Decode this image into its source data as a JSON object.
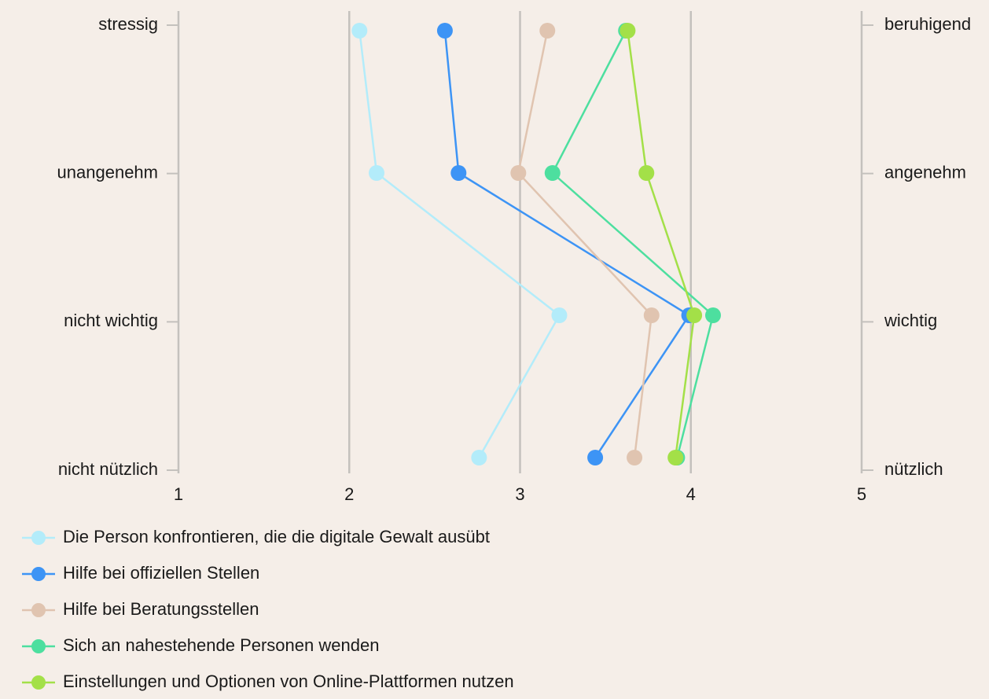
{
  "chart_data": {
    "type": "line",
    "categories": [
      "stressig",
      "unangenehm",
      "nicht wichtig",
      "nicht nützlich"
    ],
    "categories_right": [
      "beruhigend",
      "angenehm",
      "wichtig",
      "nützlich"
    ],
    "xlim": [
      1,
      5
    ],
    "xticks": [
      1,
      2,
      3,
      4,
      5
    ],
    "grid": true,
    "legend": "bottom",
    "series": [
      {
        "name": "Die Person konfrontieren, die die digitale Gewalt ausübt",
        "color": "#b3ecfa",
        "values": [
          2.06,
          2.16,
          3.23,
          2.76
        ]
      },
      {
        "name": "Hilfe bei offiziellen Stellen",
        "color": "#3d94f5",
        "values": [
          2.56,
          2.64,
          3.99,
          3.44
        ]
      },
      {
        "name": "Hilfe bei Beratungsstellen",
        "color": "#e0c4b0",
        "values": [
          3.16,
          2.99,
          3.77,
          3.67
        ]
      },
      {
        "name": "Sich an nahestehende Personen wenden",
        "color": "#4ddf9f",
        "values": [
          3.62,
          3.19,
          4.13,
          3.92
        ]
      },
      {
        "name": "Einstellungen und Optionen von Online-Plattformen nutzen",
        "color": "#a3e048",
        "values": [
          3.63,
          3.74,
          4.02,
          3.91
        ]
      }
    ]
  }
}
